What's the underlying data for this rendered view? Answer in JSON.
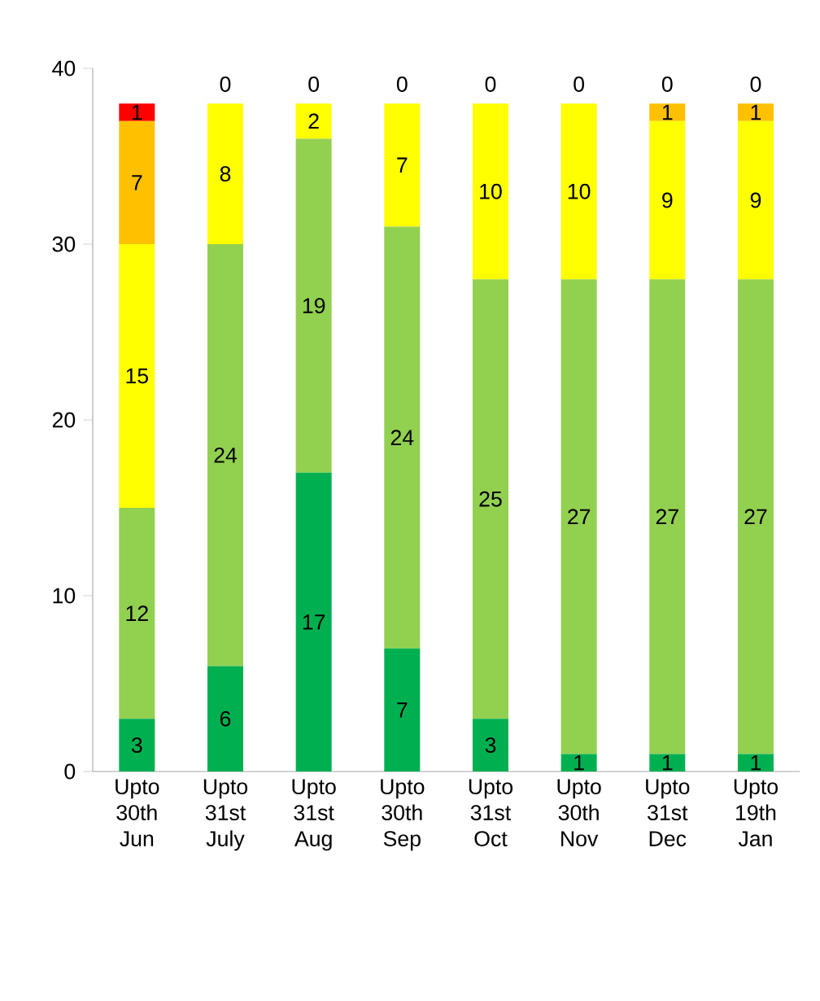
{
  "chart_data": {
    "type": "bar",
    "stacked": true,
    "categories": [
      "Upto 30th Jun",
      "Upto 31st July",
      "Upto 31st Aug",
      "Upto 30th Sep",
      "Upto 31st Oct",
      "Upto 30th Nov",
      "Upto 31st Dec",
      "Upto 19th Jan"
    ],
    "series": [
      {
        "color": "#00b050",
        "values": [
          3,
          6,
          17,
          7,
          3,
          1,
          1,
          1
        ],
        "value_labels": [
          "3",
          "6",
          "17",
          "7",
          "3",
          "1",
          "1",
          "1"
        ]
      },
      {
        "color": "#92d050",
        "values": [
          12,
          24,
          19,
          24,
          25,
          27,
          27,
          27
        ],
        "value_labels": [
          "12",
          "24",
          "19",
          "24",
          "25",
          "27",
          "27",
          "27"
        ]
      },
      {
        "color": "#ffff00",
        "values": [
          15,
          8,
          2,
          7,
          10,
          10,
          9,
          9
        ],
        "value_labels": [
          "15",
          "8",
          "2",
          "7",
          "10",
          "10",
          "9",
          "9"
        ]
      },
      {
        "color": "#ffc000",
        "values": [
          7,
          0,
          0,
          0,
          0,
          0,
          1,
          1
        ],
        "value_labels": [
          "7",
          null,
          null,
          null,
          null,
          null,
          "1",
          "1"
        ]
      },
      {
        "color": "#ff0000",
        "values": [
          1,
          0,
          0,
          0,
          0,
          0,
          0,
          0
        ],
        "value_labels": [
          "1",
          "0",
          "0",
          "0",
          "0",
          "0",
          "0",
          "0"
        ]
      }
    ],
    "ylim": [
      0,
      40
    ],
    "yticks": [
      0,
      10,
      20,
      30,
      40
    ],
    "grid": false
  }
}
